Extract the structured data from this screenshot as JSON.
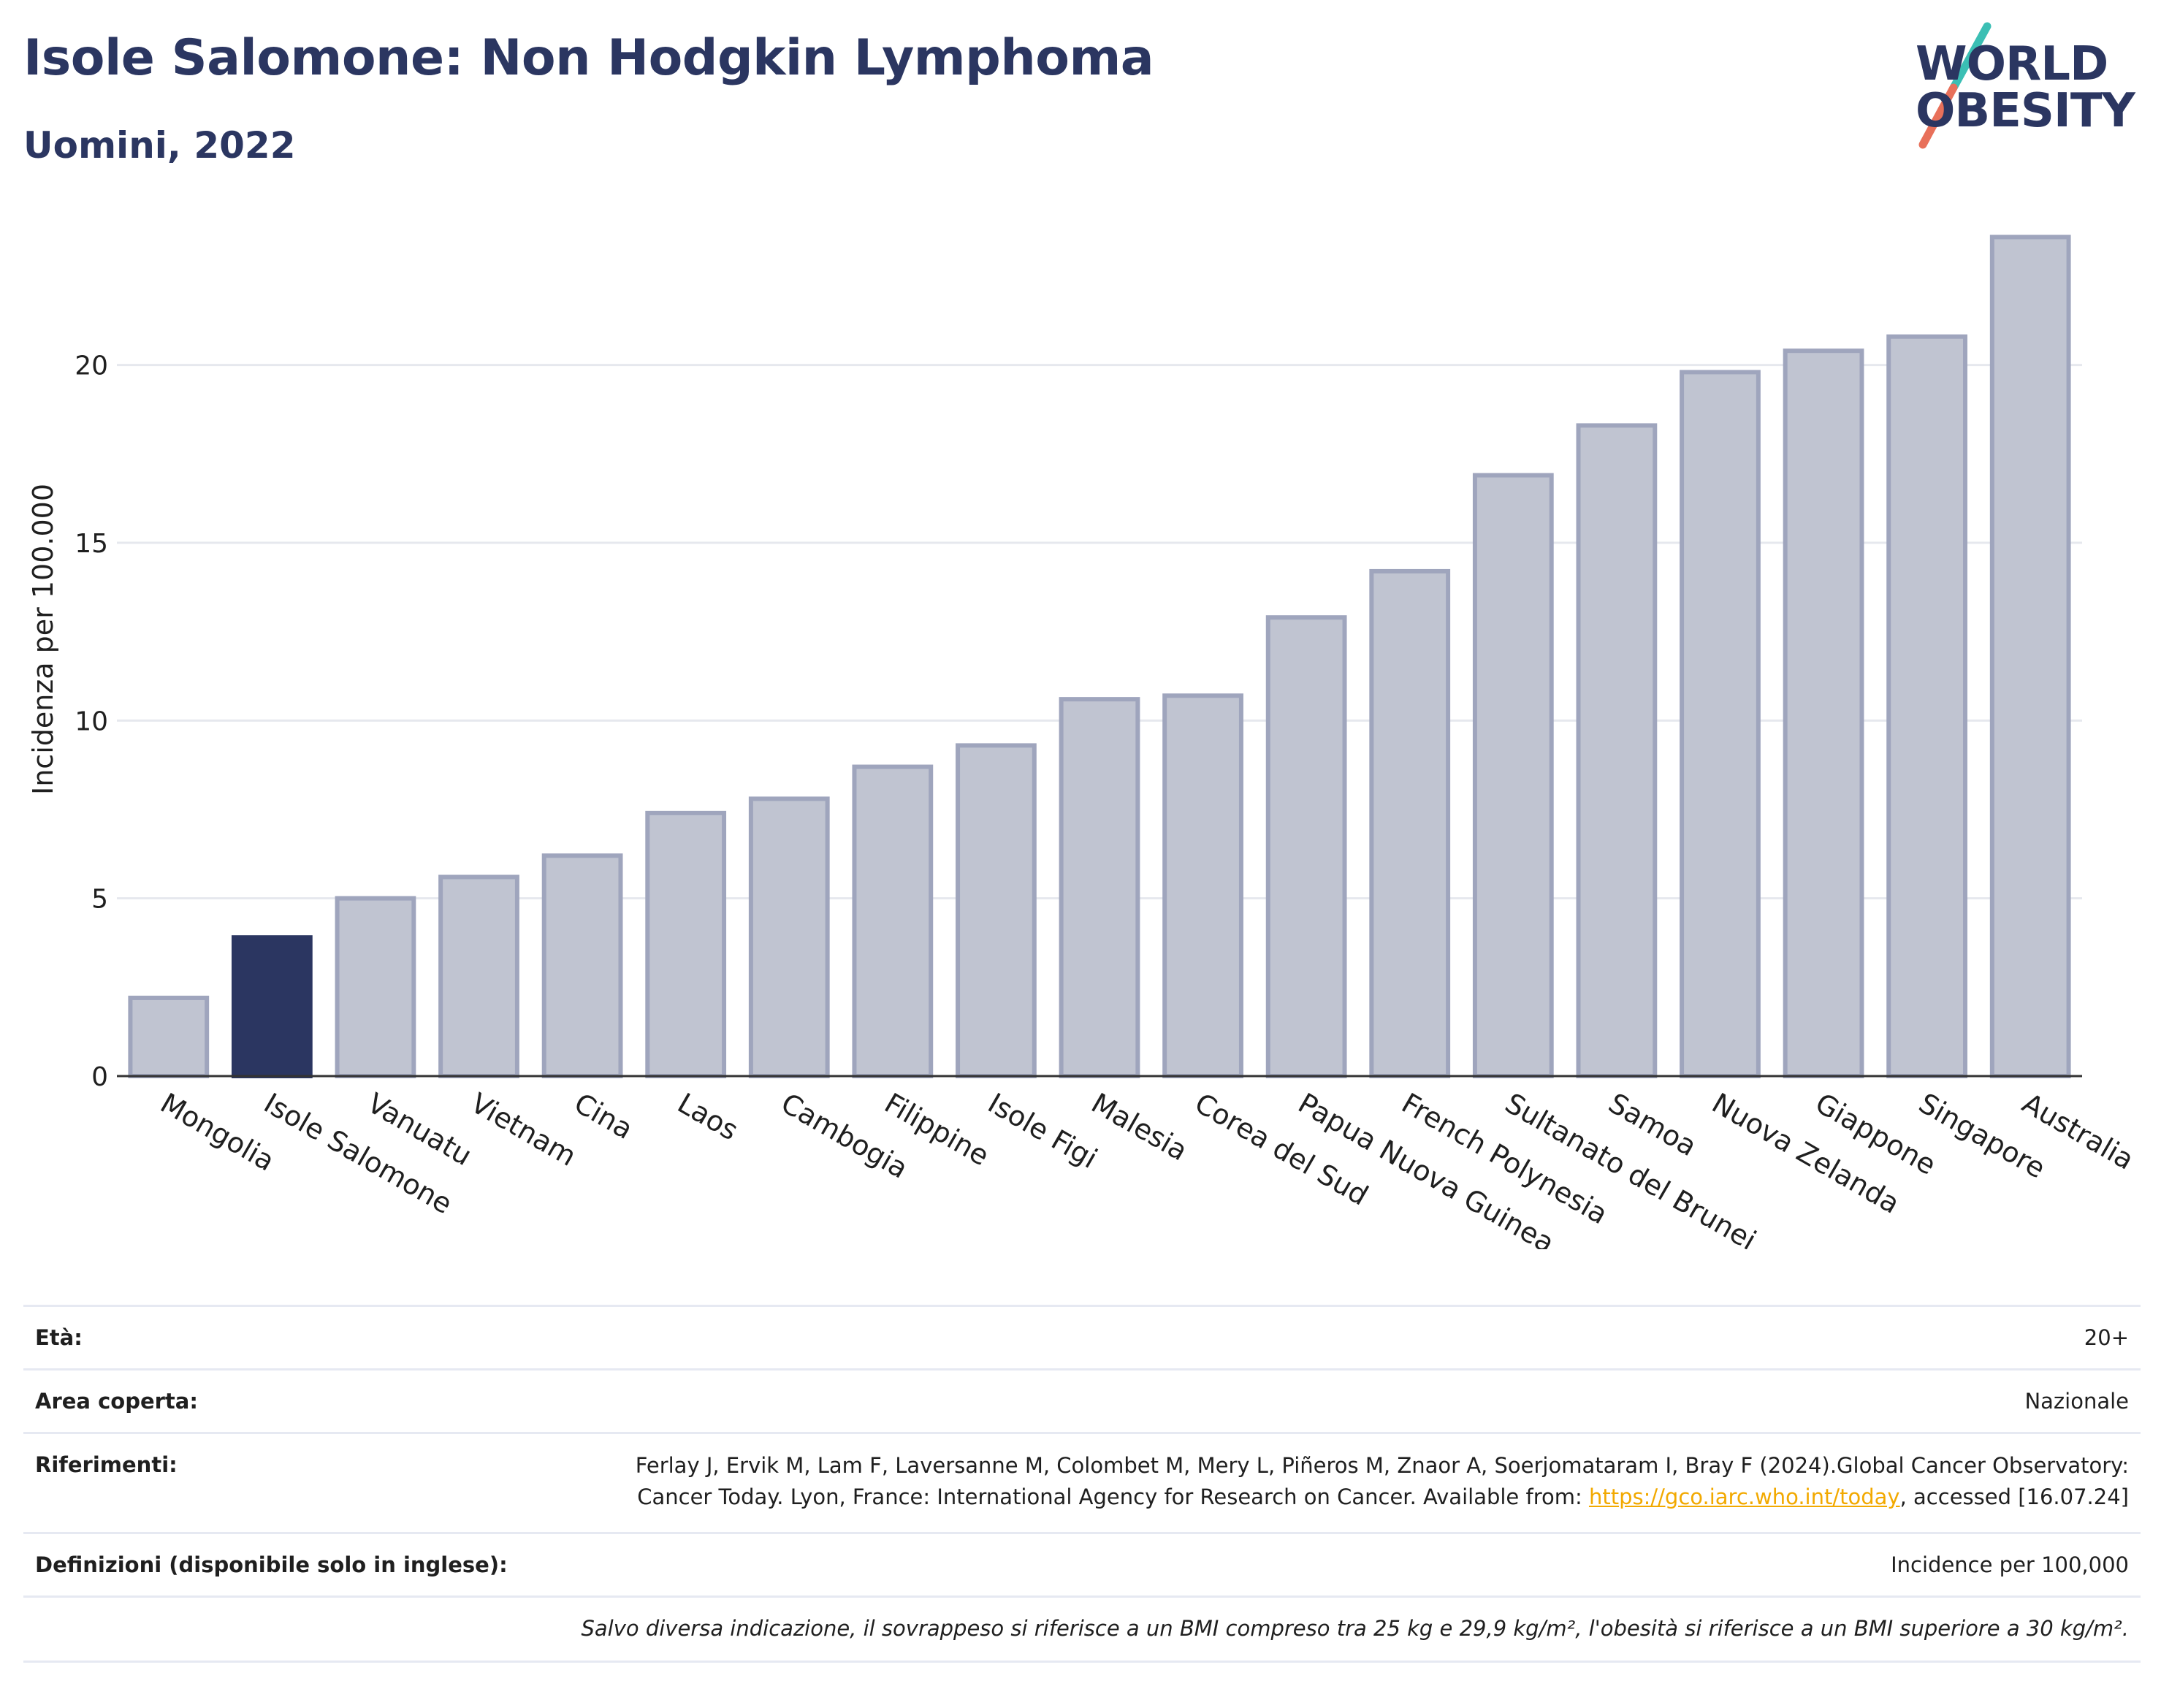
{
  "header": {
    "title": "Isole Salomone: Non Hodgkin Lymphoma",
    "subtitle": "Uomini, 2022"
  },
  "logo": {
    "line1": "WORLD",
    "line2": "OBESITY",
    "icon": "world-obesity-slash-icon",
    "colors": {
      "text": "#2b3661",
      "slash_top": "#3bbfb4",
      "slash_bottom": "#e8705a"
    }
  },
  "chart_data": {
    "type": "bar",
    "ylabel": "Incidenza per 100.000",
    "xlabel": "",
    "ylim": [
      0,
      24
    ],
    "yticks": [
      0,
      5,
      10,
      15,
      20
    ],
    "grid": true,
    "categories": [
      "Mongolia",
      "Isole Salomone",
      "Vanuatu",
      "Vietnam",
      "Cina",
      "Laos",
      "Cambogia",
      "Filippine",
      "Isole Figi",
      "Malesia",
      "Corea del Sud",
      "Papua Nuova Guinea",
      "French Polynesia",
      "Sultanato del Brunei",
      "Samoa",
      "Nuova Zelanda",
      "Giappone",
      "Singapore",
      "Australia"
    ],
    "values": [
      2.2,
      3.9,
      5.0,
      5.6,
      6.2,
      7.4,
      7.8,
      8.7,
      9.3,
      10.6,
      10.7,
      12.9,
      14.2,
      16.9,
      18.3,
      19.8,
      20.4,
      20.8,
      23.6
    ],
    "highlight": "Isole Salomone",
    "colors": {
      "bar": "#c0c4d1",
      "bar_stroke": "#9fa5bd",
      "highlight": "#2b3661"
    }
  },
  "info": {
    "age_label": "Età:",
    "age_value": "20+",
    "area_label": "Area coperta:",
    "area_value": "Nazionale",
    "ref_label": "Riferimenti:",
    "ref_text_1": "Ferlay J, Ervik M, Lam F, Laversanne M, Colombet M, Mery L, Piñeros M, Znaor A, Soerjomataram I, Bray F (2024).Global Cancer Observatory: Cancer Today. Lyon, France: International Agency for Research on Cancer. Available from:",
    "ref_link": "https://gco.iarc.who.int/today",
    "ref_text_2": ", accessed [16.07.24]",
    "def_label": "Definizioni (disponibile solo in inglese):",
    "def_value": "Incidence per 100,000",
    "note": "Salvo diversa indicazione, il sovrappeso si riferisce a un BMI compreso tra 25 kg e 29,9 kg/m², l'obesità si riferisce a un BMI superiore a 30 kg/m²."
  }
}
